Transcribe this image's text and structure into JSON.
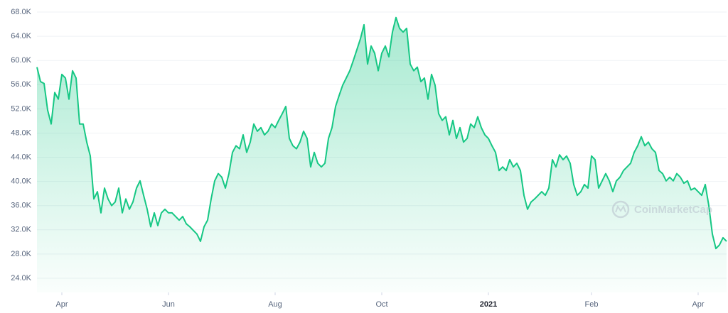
{
  "chart_data": {
    "type": "line",
    "watermark": "CoinMarketCap",
    "categories": [
      null,
      null,
      null,
      null,
      null,
      null,
      null,
      "Apr",
      null,
      null,
      null,
      null,
      null,
      null,
      null,
      null,
      null,
      null,
      null,
      null,
      null,
      null,
      null,
      null,
      null,
      null,
      null,
      null,
      null,
      null,
      null,
      null,
      null,
      null,
      null,
      null,
      null,
      "Jun",
      null,
      null,
      null,
      null,
      null,
      null,
      null,
      null,
      null,
      null,
      null,
      null,
      null,
      null,
      null,
      null,
      null,
      null,
      null,
      null,
      null,
      null,
      null,
      null,
      null,
      null,
      null,
      null,
      null,
      "Aug",
      null,
      null,
      null,
      null,
      null,
      null,
      null,
      null,
      null,
      null,
      null,
      null,
      null,
      null,
      null,
      null,
      null,
      null,
      null,
      null,
      null,
      null,
      null,
      null,
      null,
      null,
      null,
      null,
      null,
      "Oct",
      null,
      null,
      null,
      null,
      null,
      null,
      null,
      null,
      null,
      null,
      null,
      null,
      null,
      null,
      null,
      null,
      null,
      null,
      null,
      null,
      null,
      null,
      null,
      null,
      null,
      null,
      null,
      null,
      null,
      "2021",
      null,
      null,
      null,
      null,
      null,
      null,
      null,
      null,
      null,
      null,
      null,
      null,
      null,
      null,
      null,
      null,
      null,
      null,
      null,
      null,
      null,
      null,
      null,
      null,
      null,
      null,
      null,
      null,
      "Feb",
      null,
      null,
      null,
      null,
      null,
      null,
      null,
      null,
      null,
      null,
      null,
      null,
      null,
      null,
      null,
      null,
      null,
      null,
      null,
      null,
      null,
      null,
      null,
      null,
      null,
      null,
      null,
      null,
      null,
      "Apr",
      null,
      null,
      null,
      null,
      null,
      null,
      null,
      null
    ],
    "values": [
      58900,
      56500,
      56200,
      51800,
      49500,
      54700,
      53600,
      57700,
      57100,
      53600,
      58300,
      57100,
      49500,
      49500,
      46500,
      44200,
      37100,
      38300,
      34800,
      38900,
      37100,
      36000,
      36600,
      38900,
      34800,
      37100,
      35400,
      36600,
      38900,
      40100,
      37700,
      35400,
      32500,
      34800,
      32700,
      34800,
      35400,
      34800,
      34800,
      34200,
      33600,
      34200,
      33000,
      32500,
      31900,
      31300,
      30100,
      32500,
      33600,
      37100,
      40100,
      41300,
      40700,
      38900,
      41300,
      44800,
      45900,
      45400,
      47700,
      44800,
      46500,
      49500,
      48300,
      48900,
      47700,
      48300,
      49500,
      48900,
      50100,
      51200,
      52400,
      47100,
      45900,
      45400,
      46500,
      48300,
      47100,
      42400,
      44800,
      43000,
      42400,
      43000,
      47100,
      48900,
      52400,
      54200,
      55900,
      57100,
      58300,
      60000,
      61800,
      63600,
      65900,
      59400,
      62400,
      61200,
      58300,
      61200,
      62400,
      60600,
      64700,
      67100,
      65300,
      64700,
      65300,
      59400,
      58300,
      58900,
      56500,
      57100,
      53600,
      57700,
      55900,
      51200,
      50100,
      50700,
      47700,
      50100,
      47100,
      48900,
      46500,
      47100,
      49500,
      48900,
      50700,
      48900,
      47700,
      47100,
      45900,
      44800,
      41800,
      42400,
      41800,
      43600,
      42400,
      43000,
      41800,
      37700,
      35400,
      36600,
      37100,
      37700,
      38300,
      37700,
      38900,
      43600,
      42400,
      44400,
      43600,
      44200,
      43000,
      39500,
      37700,
      38300,
      39500,
      38900,
      44200,
      43600,
      38900,
      40100,
      41300,
      40100,
      38300,
      40100,
      40700,
      41800,
      42400,
      43000,
      44800,
      45900,
      47400,
      45900,
      46500,
      45400,
      44800,
      41800,
      41300,
      40100,
      40700,
      40100,
      41300,
      40700,
      39700,
      40100,
      38600,
      38900,
      38300,
      37700,
      39500,
      36000,
      31300,
      28900,
      29500,
      30700,
      30100
    ],
    "color": "#16c784",
    "ylim": [
      21650,
      70000
    ],
    "yticks": [
      {
        "value": 24000,
        "label": "24.0K"
      },
      {
        "value": 28000,
        "label": "28.0K"
      },
      {
        "value": 32000,
        "label": "32.0K"
      },
      {
        "value": 36000,
        "label": "36.0K"
      },
      {
        "value": 40000,
        "label": "40.0K"
      },
      {
        "value": 44000,
        "label": "44.0K"
      },
      {
        "value": 48000,
        "label": "48.0K"
      },
      {
        "value": 52000,
        "label": "52.0K"
      },
      {
        "value": 56000,
        "label": "56.0K"
      },
      {
        "value": 60000,
        "label": "60.0K"
      },
      {
        "value": 64000,
        "label": "64.0K"
      },
      {
        "value": 68000,
        "label": "68.0K"
      }
    ],
    "grid": true
  }
}
